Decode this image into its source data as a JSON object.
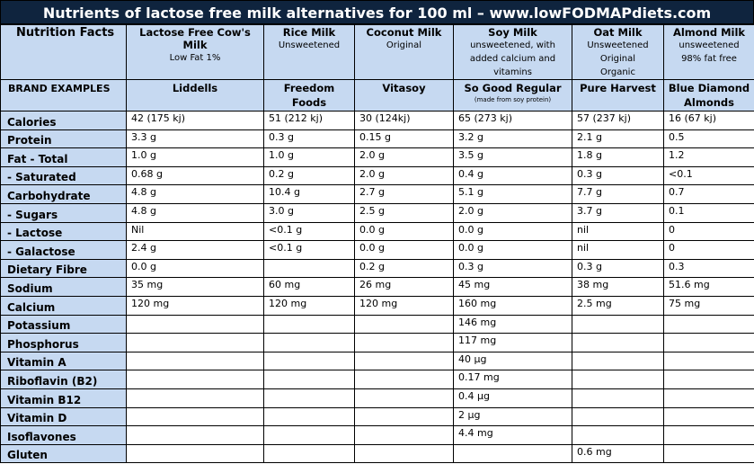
{
  "title": "Nutrients of lactose free milk alternatives for 100 ml – www.lowFODMAPdiets.com",
  "header_label": "Nutrition Facts",
  "brand_label": "BRAND EXAMPLES",
  "columns": [
    {
      "name": "Lactose Free Cow's Milk",
      "sub": [
        "Low Fat 1%"
      ],
      "brand": [
        "Liddells"
      ],
      "brand_note": ""
    },
    {
      "name": "Rice Milk",
      "sub": [
        "Unsweetened"
      ],
      "brand": [
        "Freedom",
        "Foods"
      ],
      "brand_note": ""
    },
    {
      "name": "Coconut Milk",
      "sub": [
        "Original"
      ],
      "brand": [
        "Vitasoy"
      ],
      "brand_note": ""
    },
    {
      "name": "Soy Milk",
      "sub": [
        "unsweetened, with",
        "added calcium and",
        "vitamins"
      ],
      "brand": [
        "So Good Regular"
      ],
      "brand_note": "(made from soy protein)"
    },
    {
      "name": "Oat Milk",
      "sub": [
        "Unsweetened",
        "Original",
        "Organic"
      ],
      "brand": [
        "Pure Harvest"
      ],
      "brand_note": ""
    },
    {
      "name": "Almond Milk",
      "sub": [
        "unsweetened",
        "98% fat free"
      ],
      "brand": [
        "Blue Diamond",
        "Almonds"
      ],
      "brand_note": ""
    }
  ],
  "rows": [
    {
      "label": "Calories",
      "values": [
        "42 (175 kj)",
        "51 (212 kj)",
        "30 (124kj)",
        "65 (273 kj)",
        "57 (237 kj)",
        "16 (67 kj)"
      ]
    },
    {
      "label": "Protein",
      "values": [
        "3.3 g",
        "0.3 g",
        "0.15 g",
        "3.2 g",
        "2.1 g",
        "0.5"
      ]
    },
    {
      "label": "Fat - Total",
      "values": [
        "1.0 g",
        "1.0 g",
        "2.0 g",
        "3.5 g",
        "1.8 g",
        "1.2"
      ]
    },
    {
      "label": "- Saturated",
      "values": [
        "0.68 g",
        "0.2 g",
        "2.0 g",
        "0.4 g",
        "0.3 g",
        "<0.1"
      ]
    },
    {
      "label": "Carbohydrate",
      "values": [
        "4.8 g",
        "10.4 g",
        "2.7 g",
        "5.1 g",
        "7.7 g",
        "0.7"
      ]
    },
    {
      "label": "- Sugars",
      "values": [
        "4.8 g",
        "3.0 g",
        "2.5 g",
        "2.0 g",
        "3.7 g",
        "0.1"
      ]
    },
    {
      "label": "- Lactose",
      "values": [
        "Nil",
        "<0.1 g",
        "0.0 g",
        "0.0 g",
        "nil",
        "0"
      ]
    },
    {
      "label": "- Galactose",
      "values": [
        "2.4 g",
        "<0.1 g",
        "0.0 g",
        "0.0 g",
        "nil",
        "0"
      ]
    },
    {
      "label": "Dietary Fibre",
      "values": [
        "0.0 g",
        "",
        "0.2 g",
        "0.3 g",
        "0.3 g",
        "0.3"
      ]
    },
    {
      "label": "Sodium",
      "values": [
        "35 mg",
        "60 mg",
        "26 mg",
        "45 mg",
        "38 mg",
        "51.6 mg"
      ]
    },
    {
      "label": "Calcium",
      "values": [
        "120 mg",
        "120 mg",
        "120 mg",
        "160 mg",
        "2.5 mg",
        "75 mg"
      ]
    },
    {
      "label": "Potassium",
      "values": [
        "",
        "",
        "",
        "146 mg",
        "",
        ""
      ]
    },
    {
      "label": "Phosphorus",
      "values": [
        "",
        "",
        "",
        "117 mg",
        "",
        ""
      ]
    },
    {
      "label": "Vitamin A",
      "values": [
        "",
        "",
        "",
        "40 µg",
        "",
        ""
      ]
    },
    {
      "label": "Riboflavin (B2)",
      "values": [
        "",
        "",
        "",
        "0.17 mg",
        "",
        ""
      ]
    },
    {
      "label": "Vitamin B12",
      "values": [
        "",
        "",
        "",
        "0.4 µg",
        "",
        ""
      ]
    },
    {
      "label": "Vitamin D",
      "values": [
        "",
        "",
        "",
        "2 µg",
        "",
        ""
      ]
    },
    {
      "label": "Isoflavones",
      "values": [
        "",
        "",
        "",
        "4.4 mg",
        "",
        ""
      ]
    },
    {
      "label": "Gluten",
      "values": [
        "",
        "",
        "",
        "",
        "0.6 mg",
        ""
      ]
    }
  ]
}
